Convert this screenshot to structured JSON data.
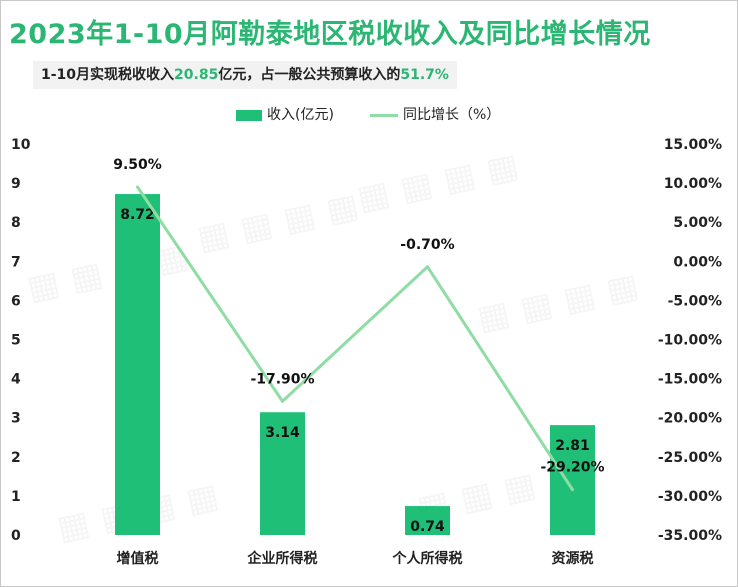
{
  "title": "2023年1-10月阿勒泰地区税收收入及同比增长情况",
  "subtitle": {
    "prefix": "1-10月实现税收收入",
    "revenue": "20.85",
    "middle": "亿元，占一般公共预算收入的",
    "share": "51.7%"
  },
  "colors": {
    "bar": "#20bf77",
    "line": "#8fdca4",
    "accent": "#2bb673"
  },
  "chart_data": {
    "type": "bar+line",
    "categories": [
      "增值税",
      "企业所得税",
      "个人所得税",
      "资源税"
    ],
    "series": [
      {
        "name": "收入(亿元)",
        "type": "bar",
        "axis": "left",
        "values": [
          8.72,
          3.14,
          0.74,
          2.81
        ],
        "labels": [
          "8.72",
          "3.14",
          "0.74",
          "2.81"
        ]
      },
      {
        "name": "同比增长（%）",
        "type": "line",
        "axis": "right",
        "values": [
          9.5,
          -17.9,
          -0.7,
          -29.2
        ],
        "labels": [
          "9.50%",
          "-17.90%",
          "-0.70%",
          "-29.20%"
        ]
      }
    ],
    "y_left": {
      "min": 0,
      "max": 10,
      "step": 1,
      "ticks": [
        "0",
        "1",
        "2",
        "3",
        "4",
        "5",
        "6",
        "7",
        "8",
        "9",
        "10"
      ]
    },
    "y_right": {
      "min": -35,
      "max": 15,
      "step": 5,
      "ticks": [
        "-35.00%",
        "-30.00%",
        "-25.00%",
        "-20.00%",
        "-15.00%",
        "-10.00%",
        "-5.00%",
        "0.00%",
        "5.00%",
        "10.00%",
        "15.00%"
      ]
    },
    "legend": [
      "收入(亿元)",
      "同比增长（%）"
    ],
    "legend_position": "top-center",
    "grid": false
  }
}
